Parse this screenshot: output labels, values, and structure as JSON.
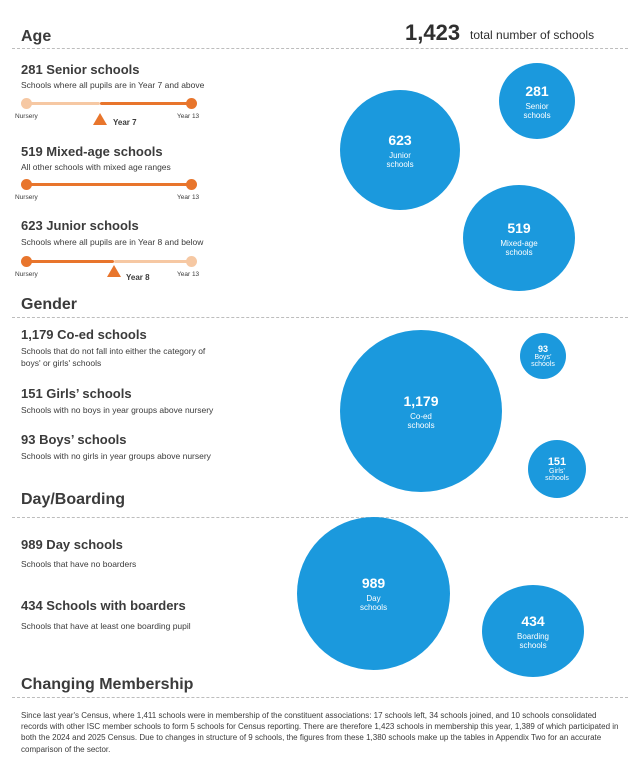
{
  "total": {
    "number": "1,423",
    "label": "total number of schools"
  },
  "age": {
    "title": "Age",
    "senior": {
      "heading": "281 Senior schools",
      "desc": "Schools where all pupils are in Year 7 and above",
      "left": "Nursery",
      "right": "Year 13",
      "marker": "Year 7"
    },
    "mixed": {
      "heading": "519 Mixed-age schools",
      "desc": "All other schools with mixed age ranges",
      "left": "Nursery",
      "right": "Year 13"
    },
    "junior": {
      "heading": "623 Junior schools",
      "desc": "Schools where all pupils are in Year 8 and below",
      "left": "Nursery",
      "right": "Year 13",
      "marker": "Year 8"
    },
    "bubbles": {
      "senior": {
        "num": "281",
        "label1": "Senior",
        "label2": "schools"
      },
      "junior": {
        "num": "623",
        "label1": "Junior",
        "label2": "schools"
      },
      "mixed": {
        "num": "519",
        "label1": "Mixed-age",
        "label2": "schools"
      }
    }
  },
  "gender": {
    "title": "Gender",
    "coed": {
      "heading": "1,179 Co-ed schools",
      "desc1": "Schools that do not fall into either the category of",
      "desc2": "boys' or girls' schools"
    },
    "girls": {
      "heading": "151 Girls’ schools",
      "desc": "Schools with no boys in year groups above nursery"
    },
    "boys": {
      "heading": "93 Boys’ schools",
      "desc": "Schools with no girls in year groups above nursery"
    },
    "bubbles": {
      "coed": {
        "num": "1,179",
        "label1": "Co-ed",
        "label2": "schools"
      },
      "boys": {
        "num": "93",
        "label1": "Boys’",
        "label2": "schools"
      },
      "girls": {
        "num": "151",
        "label1": "Girls’",
        "label2": "schools"
      }
    }
  },
  "boarding": {
    "title": "Day/Boarding",
    "day": {
      "heading": "989 Day schools",
      "desc": "Schools that have no boarders"
    },
    "boarders": {
      "heading": "434 Schools with boarders",
      "desc": "Schools that have at least one boarding pupil"
    },
    "bubbles": {
      "day": {
        "num": "989",
        "label1": "Day",
        "label2": "schools"
      },
      "boarding": {
        "num": "434",
        "label1": "Boarding",
        "label2": "schools"
      }
    }
  },
  "membership": {
    "title": "Changing Membership",
    "text": "Since last year's Census, where 1,411 schools were in membership of the constituent associations: 17 schools left, 34 schools joined, and 10 schools consolidated records with other ISC member schools to form 5 schools for Census reporting. There are therefore 1,423 schools in membership this year, 1,389 of which participated in both the 2024 and 2025 Census. Due to changes in structure of 9 schools, the figures from these 1,380 schools make up the tables in Appendix Two for an accurate comparison of the sector."
  },
  "colors": {
    "bubble": "#1b99dd",
    "accent": "#e8752c",
    "accent_light": "#f6c8a3"
  }
}
